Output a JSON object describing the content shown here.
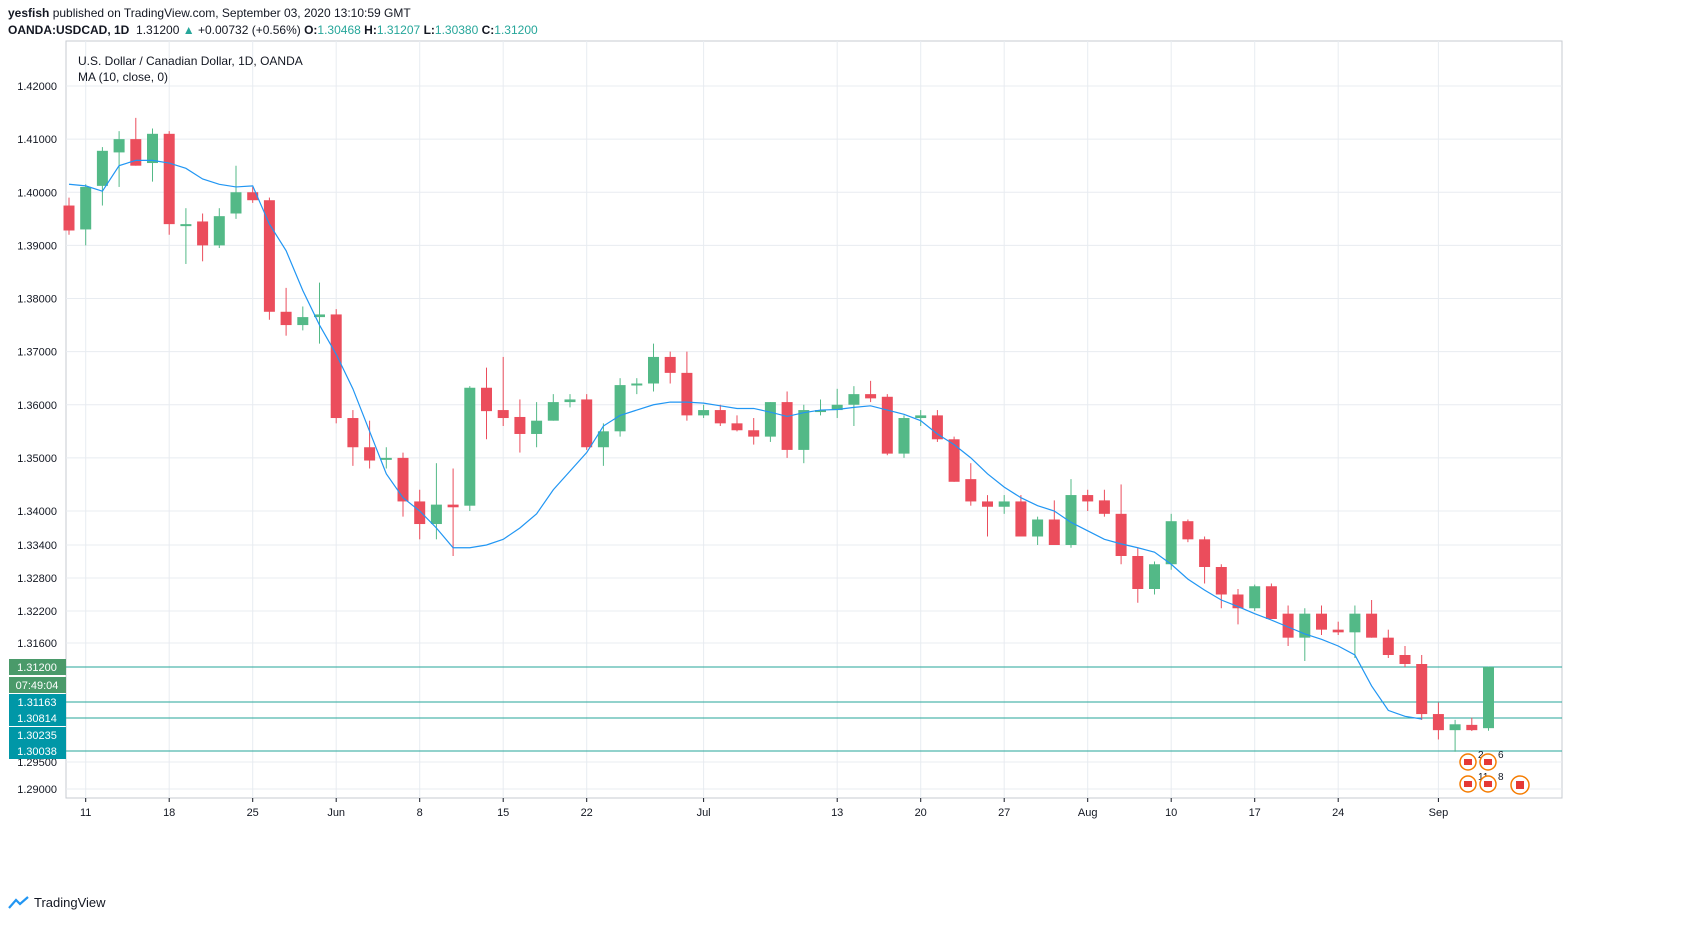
{
  "header": {
    "publisher": "yesfish",
    "published_text": " published on TradingView.com, September 03, 2020 13:10:59 GMT",
    "symbol": "OANDA:USDCAD, 1D",
    "last": "1.31200",
    "change": "+0.00732 (+0.56%)",
    "o_label": "O:",
    "o_val": "1.30468",
    "h_label": "H:",
    "h_val": "1.31207",
    "l_label": "L:",
    "l_val": "1.30380",
    "c_label": "C:",
    "c_val": "1.31200"
  },
  "legend": {
    "series_name": "U.S. Dollar / Canadian Dollar, 1D, OANDA",
    "indicator": "MA (10, close, 0)"
  },
  "footer": {
    "brand": "TradingView"
  },
  "colors": {
    "up": "#53b987",
    "down": "#eb4d5c",
    "ma": "#2196f3",
    "grid": "#e8ecf1",
    "hline": "#26a69a",
    "priceTag": "#0097a7",
    "lastTag": "#4a9a6a"
  },
  "chart_data": {
    "type": "candlestick",
    "title": "U.S. Dollar / Canadian Dollar, 1D, OANDA",
    "y_ticks": [
      "1.42000",
      "1.41000",
      "1.40000",
      "1.39000",
      "1.38000",
      "1.37000",
      "1.36000",
      "1.35000",
      "1.34000",
      "1.33400",
      "1.32800",
      "1.32200",
      "1.31600",
      "1.29500",
      "1.29000"
    ],
    "x_ticks": [
      {
        "i": 1,
        "label": "11"
      },
      {
        "i": 6,
        "label": "18"
      },
      {
        "i": 11,
        "label": "25"
      },
      {
        "i": 16,
        "label": "Jun"
      },
      {
        "i": 21,
        "label": "8"
      },
      {
        "i": 26,
        "label": "15"
      },
      {
        "i": 31,
        "label": "22"
      },
      {
        "i": 38,
        "label": "Jul"
      },
      {
        "i": 46,
        "label": "13"
      },
      {
        "i": 51,
        "label": "20"
      },
      {
        "i": 56,
        "label": "27"
      },
      {
        "i": 61,
        "label": "Aug"
      },
      {
        "i": 66,
        "label": "10"
      },
      {
        "i": 71,
        "label": "17"
      },
      {
        "i": 76,
        "label": "24"
      },
      {
        "i": 82,
        "label": "Sep"
      }
    ],
    "candles": [
      [
        1.3975,
        1.399,
        1.392,
        1.3928
      ],
      [
        1.393,
        1.4015,
        1.39,
        1.401
      ],
      [
        1.4012,
        1.4085,
        1.3975,
        1.4078
      ],
      [
        1.4075,
        1.4115,
        1.401,
        1.41
      ],
      [
        1.41,
        1.414,
        1.405,
        1.405
      ],
      [
        1.4055,
        1.412,
        1.402,
        1.411
      ],
      [
        1.411,
        1.4115,
        1.392,
        1.394
      ],
      [
        1.394,
        1.397,
        1.3865,
        1.394
      ],
      [
        1.3945,
        1.396,
        1.387,
        1.39
      ],
      [
        1.39,
        1.397,
        1.3895,
        1.3955
      ],
      [
        1.396,
        1.405,
        1.395,
        1.4
      ],
      [
        1.4,
        1.401,
        1.398,
        1.3985
      ],
      [
        1.3985,
        1.399,
        1.376,
        1.3775
      ],
      [
        1.3775,
        1.382,
        1.373,
        1.375
      ],
      [
        1.375,
        1.3785,
        1.374,
        1.3765
      ],
      [
        1.3765,
        1.383,
        1.3715,
        1.377
      ],
      [
        1.377,
        1.378,
        1.3565,
        1.3575
      ],
      [
        1.3575,
        1.359,
        1.3485,
        1.352
      ],
      [
        1.352,
        1.357,
        1.348,
        1.3495
      ],
      [
        1.3497,
        1.352,
        1.348,
        1.35
      ],
      [
        1.35,
        1.351,
        1.339,
        1.3418
      ],
      [
        1.3418,
        1.344,
        1.335,
        1.3377
      ],
      [
        1.3377,
        1.349,
        1.335,
        1.3412
      ],
      [
        1.3412,
        1.348,
        1.332,
        1.3407
      ],
      [
        1.341,
        1.3635,
        1.34,
        1.3632
      ],
      [
        1.3632,
        1.367,
        1.3535,
        1.3588
      ],
      [
        1.359,
        1.369,
        1.356,
        1.3575
      ],
      [
        1.3577,
        1.361,
        1.351,
        1.3545
      ],
      [
        1.3545,
        1.3605,
        1.352,
        1.357
      ],
      [
        1.357,
        1.362,
        1.357,
        1.3605
      ],
      [
        1.3605,
        1.362,
        1.3595,
        1.361
      ],
      [
        1.361,
        1.362,
        1.3515,
        1.352
      ],
      [
        1.352,
        1.3565,
        1.3485,
        1.355
      ],
      [
        1.355,
        1.365,
        1.354,
        1.3637
      ],
      [
        1.3637,
        1.365,
        1.362,
        1.364
      ],
      [
        1.364,
        1.3715,
        1.3625,
        1.369
      ],
      [
        1.369,
        1.37,
        1.364,
        1.366
      ],
      [
        1.366,
        1.37,
        1.357,
        1.358
      ],
      [
        1.358,
        1.36,
        1.3575,
        1.359
      ],
      [
        1.359,
        1.36,
        1.356,
        1.3565
      ],
      [
        1.3565,
        1.358,
        1.355,
        1.3552
      ],
      [
        1.3552,
        1.3575,
        1.3525,
        1.354
      ],
      [
        1.354,
        1.3605,
        1.353,
        1.3605
      ],
      [
        1.3605,
        1.3625,
        1.35,
        1.3515
      ],
      [
        1.3515,
        1.36,
        1.349,
        1.359
      ],
      [
        1.359,
        1.361,
        1.358,
        1.359
      ],
      [
        1.359,
        1.363,
        1.3575,
        1.36
      ],
      [
        1.36,
        1.3635,
        1.356,
        1.362
      ],
      [
        1.362,
        1.3645,
        1.3605,
        1.3612
      ],
      [
        1.3615,
        1.362,
        1.3505,
        1.3508
      ],
      [
        1.3508,
        1.358,
        1.35,
        1.3575
      ],
      [
        1.3575,
        1.359,
        1.356,
        1.358
      ],
      [
        1.358,
        1.359,
        1.353,
        1.3535
      ],
      [
        1.3535,
        1.354,
        1.3455,
        1.3455
      ],
      [
        1.346,
        1.349,
        1.341,
        1.3418
      ],
      [
        1.3418,
        1.343,
        1.3355,
        1.3408
      ],
      [
        1.3408,
        1.343,
        1.3395,
        1.3418
      ],
      [
        1.3418,
        1.343,
        1.3355,
        1.3355
      ],
      [
        1.3355,
        1.339,
        1.334,
        1.3385
      ],
      [
        1.3385,
        1.342,
        1.334,
        1.334
      ],
      [
        1.334,
        1.346,
        1.3335,
        1.343
      ],
      [
        1.343,
        1.344,
        1.34,
        1.3418
      ],
      [
        1.342,
        1.344,
        1.339,
        1.3395
      ],
      [
        1.3395,
        1.345,
        1.3305,
        1.332
      ],
      [
        1.332,
        1.3335,
        1.3235,
        1.326
      ],
      [
        1.326,
        1.331,
        1.325,
        1.3305
      ],
      [
        1.3305,
        1.3395,
        1.3295,
        1.3382
      ],
      [
        1.3382,
        1.3385,
        1.3345,
        1.335
      ],
      [
        1.335,
        1.3355,
        1.327,
        1.33
      ],
      [
        1.33,
        1.3305,
        1.3225,
        1.325
      ],
      [
        1.325,
        1.326,
        1.3195,
        1.3225
      ],
      [
        1.3225,
        1.3268,
        1.322,
        1.3265
      ],
      [
        1.3265,
        1.327,
        1.3205,
        1.3205
      ],
      [
        1.3215,
        1.323,
        1.3155,
        1.317
      ],
      [
        1.317,
        1.3225,
        1.313,
        1.3215
      ],
      [
        1.3215,
        1.323,
        1.3175,
        1.3185
      ],
      [
        1.3185,
        1.32,
        1.3175,
        1.318
      ],
      [
        1.318,
        1.323,
        1.3135,
        1.3215
      ],
      [
        1.3215,
        1.324,
        1.317,
        1.317
      ],
      [
        1.317,
        1.3185,
        1.3135,
        1.314
      ],
      [
        1.314,
        1.3155,
        1.312,
        1.3125
      ],
      [
        1.3125,
        1.314,
        1.3075,
        1.309
      ],
      [
        1.309,
        1.3115,
        1.3018,
        1.304
      ],
      [
        1.304,
        1.3075,
        1.3,
        1.306
      ],
      [
        1.3058,
        1.3082,
        1.3037,
        1.304
      ],
      [
        1.30468,
        1.31207,
        1.3038,
        1.312
      ]
    ],
    "moving_average": {
      "name": "MA (10, close, 0)",
      "values": [
        1.4015,
        1.4012,
        1.4002,
        1.405,
        1.406,
        1.406,
        1.4055,
        1.4045,
        1.4025,
        1.4015,
        1.401,
        1.4012,
        1.394,
        1.389,
        1.3815,
        1.375,
        1.3695,
        1.363,
        1.355,
        1.347,
        1.3425,
        1.34,
        1.337,
        1.3335,
        1.3335,
        1.334,
        1.335,
        1.337,
        1.3395,
        1.344,
        1.3475,
        1.351,
        1.356,
        1.358,
        1.359,
        1.36,
        1.3605,
        1.3605,
        1.3603,
        1.3598,
        1.3593,
        1.3593,
        1.3586,
        1.3578,
        1.3585,
        1.359,
        1.3591,
        1.3595,
        1.3598,
        1.359,
        1.3582,
        1.357,
        1.3545,
        1.3525,
        1.35,
        1.347,
        1.3445,
        1.3425,
        1.341,
        1.34,
        1.338,
        1.3365,
        1.335,
        1.3342,
        1.3335,
        1.3327,
        1.3305,
        1.3278,
        1.3258,
        1.324,
        1.3228,
        1.3215,
        1.3203,
        1.319,
        1.3177,
        1.3167,
        1.3155,
        1.314,
        1.3118,
        1.3098,
        1.3085,
        1.3078
      ]
    },
    "price_tags": [
      {
        "label": "1.31200",
        "kind": "last"
      },
      {
        "label": "07:49:04",
        "kind": "countdown"
      },
      {
        "label": "1.31163",
        "kind": "line"
      },
      {
        "label": "1.30814",
        "kind": "line"
      },
      {
        "label": "1.30235",
        "kind": "line"
      },
      {
        "label": "1.30038",
        "kind": "line"
      }
    ],
    "event_badges": [
      "2",
      "6",
      "11",
      "8"
    ]
  }
}
